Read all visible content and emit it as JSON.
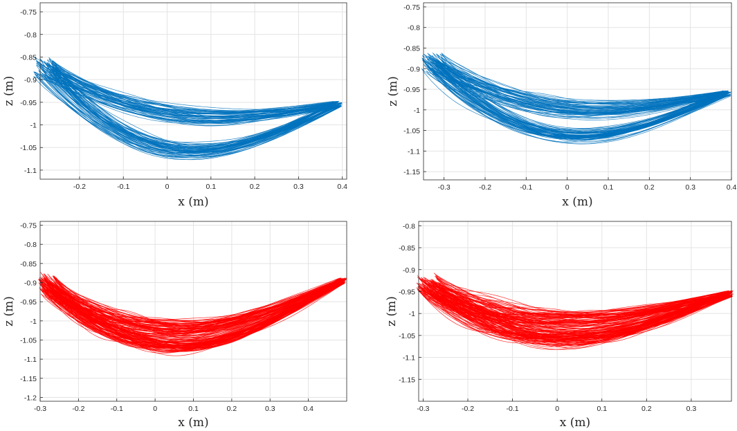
{
  "chart_data": [
    {
      "type": "line",
      "name": "top-left",
      "color": "#0072BD",
      "xlabel": "x (m)",
      "ylabel": "z (m)",
      "xlim": [
        -0.29,
        0.41
      ],
      "ylim": [
        -1.12,
        -0.73
      ],
      "xticks": [
        -0.2,
        -0.1,
        0,
        0.1,
        0.2,
        0.3,
        0.4
      ],
      "xtick_labels": [
        "-0.2",
        "-0.1",
        "0",
        "0.1",
        "0.2",
        "0.3",
        "0.4"
      ],
      "yticks": [
        -0.75,
        -0.8,
        -0.85,
        -0.9,
        -0.95,
        -1,
        -1.05,
        -1.1
      ],
      "ytick_labels": [
        "-0.75",
        "-0.8",
        "-0.85",
        "-0.9",
        "-0.95",
        "-1",
        "-1.05",
        "-1.1"
      ],
      "grid": true,
      "loops": 60,
      "lower_min": [
        0.02,
        -1.06
      ],
      "upper_min": [
        0.15,
        -0.98
      ],
      "left_end": [
        -0.28,
        -0.87
      ],
      "right_end": [
        0.39,
        -0.955
      ]
    },
    {
      "type": "line",
      "name": "top-right",
      "color": "#0072BD",
      "xlabel": "x (m)",
      "ylabel": "z (m)",
      "xlim": [
        -0.35,
        0.4
      ],
      "ylim": [
        -1.17,
        -0.74
      ],
      "xticks": [
        -0.3,
        -0.2,
        -0.1,
        0,
        0.1,
        0.2,
        0.3,
        0.4
      ],
      "xtick_labels": [
        "-0.3",
        "-0.2",
        "-0.1",
        "0",
        "0.1",
        "0.2",
        "0.3",
        "0.4"
      ],
      "yticks": [
        -0.75,
        -0.8,
        -0.85,
        -0.9,
        -0.95,
        -1,
        -1.05,
        -1.1,
        -1.15
      ],
      "ytick_labels": [
        "-0.75",
        "-0.8",
        "-0.85",
        "-0.9",
        "-0.95",
        "-1",
        "-1.05",
        "-1.1",
        "-1.15"
      ],
      "grid": true,
      "loops": 60,
      "lower_min": [
        0.0,
        -1.065
      ],
      "upper_min": [
        0.12,
        -1.0
      ],
      "left_end": [
        -0.33,
        -0.88
      ],
      "right_end": [
        0.39,
        -0.96
      ]
    },
    {
      "type": "line",
      "name": "bottom-left",
      "color": "#FF0000",
      "xlabel": "x (m)",
      "ylabel": "z (m)",
      "xlim": [
        -0.3,
        0.5
      ],
      "ylim": [
        -1.21,
        -0.74
      ],
      "xticks": [
        -0.3,
        -0.2,
        -0.1,
        0,
        0.1,
        0.2,
        0.3,
        0.4
      ],
      "xtick_labels": [
        "-0.3",
        "-0.2",
        "-0.1",
        "0",
        "0.1",
        "0.2",
        "0.3",
        "0.4"
      ],
      "yticks": [
        -0.75,
        -0.8,
        -0.85,
        -0.9,
        -0.95,
        -1,
        -1.05,
        -1.1,
        -1.15,
        -1.2
      ],
      "ytick_labels": [
        "-0.75",
        "-0.8",
        "-0.85",
        "-0.9",
        "-0.95",
        "-1",
        "-1.05",
        "-1.1",
        "-1.15",
        "-1.2"
      ],
      "grid": true,
      "loops": 80,
      "lower_min": [
        0.05,
        -1.065
      ],
      "upper_min": [
        0.08,
        -1.02
      ],
      "left_end": [
        -0.28,
        -0.9
      ],
      "right_end": [
        0.49,
        -0.895
      ]
    },
    {
      "type": "line",
      "name": "bottom-right",
      "color": "#FF0000",
      "xlabel": "x (m)",
      "ylabel": "z (m)",
      "xlim": [
        -0.31,
        0.39
      ],
      "ylim": [
        -1.2,
        -0.79
      ],
      "xticks": [
        -0.3,
        -0.2,
        -0.1,
        0,
        0.1,
        0.2,
        0.3
      ],
      "xtick_labels": [
        "-0.3",
        "-0.2",
        "-0.1",
        "0",
        "0.1",
        "0.2",
        "0.3"
      ],
      "yticks": [
        -0.8,
        -0.85,
        -0.9,
        -0.95,
        -1,
        -1.05,
        -1.1,
        -1.15
      ],
      "ytick_labels": [
        "-0.8",
        "-0.85",
        "-0.9",
        "-0.95",
        "-1",
        "-1.05",
        "-1.1",
        "-1.15"
      ],
      "grid": true,
      "loops": 80,
      "lower_min": [
        0.0,
        -1.06
      ],
      "upper_min": [
        0.05,
        -1.02
      ],
      "left_end": [
        -0.29,
        -0.935
      ],
      "right_end": [
        0.385,
        -0.955
      ]
    }
  ]
}
